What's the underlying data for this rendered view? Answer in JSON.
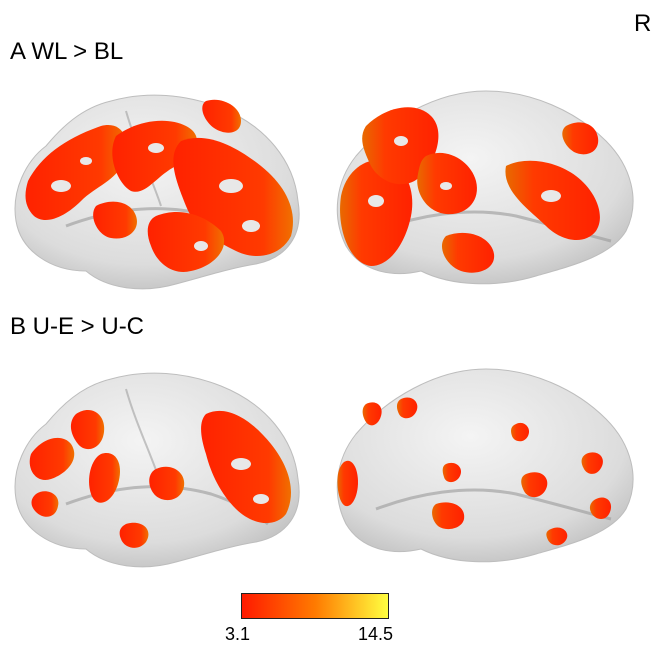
{
  "hemisphere_label": "R",
  "panels": [
    {
      "label": "A WL > BL"
    },
    {
      "label": "B U-E > U-C"
    }
  ],
  "colorbar": {
    "min": "3.1",
    "max": "14.5",
    "colors": [
      "#ff1a00",
      "#ff7a00",
      "#ffff40"
    ]
  },
  "colors": {
    "cortex": "#e6e6e6",
    "activation": "#ff2d00"
  }
}
